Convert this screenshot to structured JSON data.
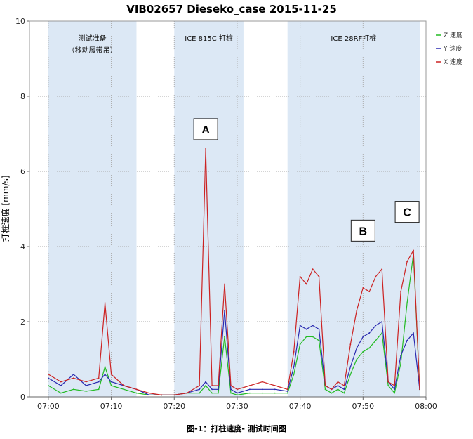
{
  "chart_data": {
    "type": "line",
    "title": "VIB02657 Dieseko_case 2015-11-25",
    "ylabel": "打桩速度 [mm/s]",
    "xlabel": "",
    "caption": "图-1：打桩速度- 测试时间图",
    "ylim": [
      0,
      10
    ],
    "xlim": [
      "06:57",
      "08:00"
    ],
    "y_ticks": [
      "0",
      "2",
      "4",
      "6",
      "8",
      "10"
    ],
    "x_ticks": [
      "07:00",
      "07:10",
      "07:20",
      "07:30",
      "07:40",
      "07:50",
      "08:00"
    ],
    "grid": true,
    "legend_position": "top-right",
    "bands": [
      {
        "start": "07:00",
        "end": "07:14",
        "label_lines": [
          "测试准备",
          "（移动履带吊）"
        ]
      },
      {
        "start": "07:20",
        "end": "07:31",
        "label_lines": [
          "ICE 815C 打桩"
        ]
      },
      {
        "start": "07:38",
        "end": "07:59",
        "label_lines": [
          "ICE 28RF打桩"
        ]
      }
    ],
    "annotations": [
      {
        "label": "A",
        "x": "07:25",
        "y": 6.6
      },
      {
        "label": "B",
        "x": "07:50",
        "y": 3.9
      },
      {
        "label": "C",
        "x": "07:57",
        "y": 4.4
      }
    ],
    "series": [
      {
        "name": "Z 速度",
        "color": "#22bb22",
        "x": [
          "07:00",
          "07:02",
          "07:04",
          "07:06",
          "07:08",
          "07:09",
          "07:10",
          "07:12",
          "07:14",
          "07:16",
          "07:18",
          "07:20",
          "07:22",
          "07:24",
          "07:25",
          "07:26",
          "07:27",
          "07:28",
          "07:29",
          "07:30",
          "07:32",
          "07:34",
          "07:36",
          "07:38",
          "07:39",
          "07:40",
          "07:41",
          "07:42",
          "07:43",
          "07:44",
          "07:45",
          "07:46",
          "07:47",
          "07:48",
          "07:49",
          "07:50",
          "07:51",
          "07:52",
          "07:53",
          "07:54",
          "07:55",
          "07:56",
          "07:57",
          "07:58",
          "07:59"
        ],
        "values": [
          0.3,
          0.1,
          0.2,
          0.15,
          0.2,
          0.8,
          0.3,
          0.2,
          0.1,
          0.05,
          0.05,
          0.05,
          0.1,
          0.1,
          0.3,
          0.1,
          0.1,
          1.6,
          0.1,
          0.05,
          0.1,
          0.1,
          0.1,
          0.1,
          0.6,
          1.4,
          1.6,
          1.6,
          1.5,
          0.2,
          0.1,
          0.2,
          0.1,
          0.6,
          1.0,
          1.2,
          1.3,
          1.5,
          1.7,
          0.3,
          0.1,
          0.9,
          2.5,
          3.8,
          0.2
        ]
      },
      {
        "name": "Y 速度",
        "color": "#2a2ab0",
        "x": [
          "07:00",
          "07:02",
          "07:04",
          "07:06",
          "07:08",
          "07:09",
          "07:10",
          "07:12",
          "07:14",
          "07:16",
          "07:18",
          "07:20",
          "07:22",
          "07:24",
          "07:25",
          "07:26",
          "07:27",
          "07:28",
          "07:29",
          "07:30",
          "07:32",
          "07:34",
          "07:36",
          "07:38",
          "07:39",
          "07:40",
          "07:41",
          "07:42",
          "07:43",
          "07:44",
          "07:45",
          "07:46",
          "07:47",
          "07:48",
          "07:49",
          "07:50",
          "07:51",
          "07:52",
          "07:53",
          "07:54",
          "07:55",
          "07:56",
          "07:57",
          "07:58",
          "07:59"
        ],
        "values": [
          0.5,
          0.3,
          0.6,
          0.3,
          0.4,
          0.6,
          0.4,
          0.3,
          0.2,
          0.05,
          0.05,
          0.05,
          0.1,
          0.2,
          0.4,
          0.2,
          0.2,
          2.3,
          0.2,
          0.1,
          0.2,
          0.2,
          0.2,
          0.15,
          0.8,
          1.9,
          1.8,
          1.9,
          1.8,
          0.3,
          0.2,
          0.3,
          0.2,
          0.8,
          1.3,
          1.6,
          1.7,
          1.9,
          2.0,
          0.4,
          0.2,
          1.1,
          1.5,
          1.7,
          0.2
        ]
      },
      {
        "name": "X 速度",
        "color": "#cc2222",
        "x": [
          "07:00",
          "07:02",
          "07:04",
          "07:06",
          "07:08",
          "07:09",
          "07:10",
          "07:12",
          "07:14",
          "07:16",
          "07:18",
          "07:20",
          "07:22",
          "07:24",
          "07:25",
          "07:26",
          "07:27",
          "07:28",
          "07:29",
          "07:30",
          "07:32",
          "07:34",
          "07:36",
          "07:38",
          "07:39",
          "07:40",
          "07:41",
          "07:42",
          "07:43",
          "07:44",
          "07:45",
          "07:46",
          "07:47",
          "07:48",
          "07:49",
          "07:50",
          "07:51",
          "07:52",
          "07:53",
          "07:54",
          "07:55",
          "07:56",
          "07:57",
          "07:58",
          "07:59"
        ],
        "values": [
          0.6,
          0.4,
          0.5,
          0.4,
          0.5,
          2.5,
          0.6,
          0.3,
          0.2,
          0.1,
          0.05,
          0.05,
          0.1,
          0.3,
          6.6,
          0.3,
          0.3,
          3.0,
          0.3,
          0.2,
          0.3,
          0.4,
          0.3,
          0.2,
          1.2,
          3.2,
          3.0,
          3.4,
          3.2,
          0.3,
          0.2,
          0.4,
          0.3,
          1.4,
          2.3,
          2.9,
          2.8,
          3.2,
          3.4,
          0.4,
          0.3,
          2.8,
          3.6,
          3.9,
          0.2
        ]
      }
    ]
  }
}
